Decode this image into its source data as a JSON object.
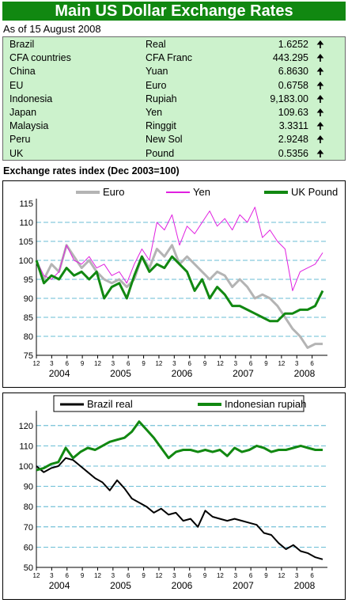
{
  "title": "Main US Dollar Exchange Rates",
  "as_of": "As of 15 August 2008",
  "rates": [
    {
      "country": "Brazil",
      "currency": "Real",
      "value": "1.6252",
      "arrow": "🠉"
    },
    {
      "country": "CFA countries",
      "currency": "CFA Franc",
      "value": "443.295",
      "arrow": "🠉"
    },
    {
      "country": "China",
      "currency": "Yuan",
      "value": "6.8630",
      "arrow": "🠉"
    },
    {
      "country": "EU",
      "currency": "Euro",
      "value": "0.6758",
      "arrow": "🠉"
    },
    {
      "country": "Indonesia",
      "currency": "Rupiah",
      "value": "9,183.00",
      "arrow": "🠉"
    },
    {
      "country": "Japan",
      "currency": "Yen",
      "value": "109.63",
      "arrow": "🠉"
    },
    {
      "country": "Malaysia",
      "currency": "Ringgit",
      "value": "3.3311",
      "arrow": "🠉"
    },
    {
      "country": "Peru",
      "currency": "New Sol",
      "value": "2.9248",
      "arrow": "🠉"
    },
    {
      "country": "UK",
      "currency": "Pound",
      "value": "0.5356",
      "arrow": "🠉"
    }
  ],
  "section_label": "Exchange rates index (Dec 2003=100)",
  "chart_data": [
    {
      "type": "line",
      "ylim": [
        75,
        115
      ],
      "yticks": [
        75,
        80,
        85,
        90,
        95,
        100,
        105,
        110,
        115
      ],
      "month_ticks": [
        "12",
        "3",
        "6",
        "9",
        "12",
        "3",
        "6",
        "9",
        "12",
        "3",
        "6",
        "9",
        "12",
        "3",
        "6",
        "9",
        "12",
        "3",
        "6"
      ],
      "year_labels": [
        "2004",
        "2005",
        "2006",
        "2007",
        "2008"
      ],
      "grid": "dashed-horizontal",
      "legend": "top",
      "series": [
        {
          "name": "Euro",
          "color": "#b4b4b4",
          "values": [
            100,
            95,
            99,
            97,
            104,
            101,
            98,
            100,
            97,
            95,
            94,
            95,
            93,
            95,
            101,
            98,
            103,
            101,
            104,
            99,
            101,
            99,
            97,
            95,
            97,
            96,
            93,
            95,
            93,
            90,
            91,
            90,
            88,
            85,
            82,
            80,
            77,
            78,
            78
          ]
        },
        {
          "name": "Yen",
          "color": "#e020e0",
          "values": [
            100,
            96,
            95,
            97,
            104,
            100,
            99,
            101,
            98,
            99,
            96,
            97,
            94,
            99,
            103,
            100,
            110,
            108,
            112,
            104,
            109,
            107,
            110,
            113,
            109,
            111,
            108,
            112,
            110,
            114,
            106,
            108,
            105,
            103,
            92,
            97,
            98,
            99,
            102
          ]
        },
        {
          "name": "UK Pound",
          "color": "#118811",
          "values": [
            100,
            94,
            96,
            95,
            98,
            96,
            97,
            95,
            97,
            90,
            93,
            94,
            90,
            96,
            101,
            97,
            99,
            98,
            101,
            99,
            97,
            92,
            95,
            90,
            93,
            91,
            88,
            88,
            87,
            86,
            85,
            84,
            84,
            86,
            86,
            87,
            87,
            88,
            92
          ]
        }
      ]
    },
    {
      "type": "line",
      "ylim": [
        50,
        125
      ],
      "yticks": [
        50,
        60,
        70,
        80,
        90,
        100,
        110,
        120
      ],
      "month_ticks": [
        "12",
        "3",
        "6",
        "9",
        "12",
        "3",
        "6",
        "9",
        "12",
        "3",
        "6",
        "9",
        "12",
        "3",
        "6",
        "9",
        "12",
        "3",
        "6"
      ],
      "year_labels": [
        "2004",
        "2005",
        "2006",
        "2007",
        "2008"
      ],
      "grid": "dashed-horizontal",
      "legend": "top",
      "series": [
        {
          "name": "Brazil real",
          "color": "#000000",
          "values": [
            100,
            97,
            99,
            100,
            104,
            103,
            100,
            97,
            94,
            92,
            88,
            93,
            89,
            84,
            82,
            80,
            77,
            79,
            76,
            77,
            73,
            74,
            70,
            78,
            75,
            74,
            73,
            74,
            73,
            72,
            71,
            67,
            66,
            62,
            59,
            61,
            58,
            57,
            55,
            54
          ]
        },
        {
          "name": "Indonesian rupiah",
          "color": "#118811",
          "values": [
            98,
            99,
            101,
            102,
            109,
            104,
            107,
            109,
            108,
            110,
            112,
            113,
            114,
            117,
            122,
            118,
            114,
            109,
            104,
            107,
            108,
            108,
            107,
            108,
            107,
            108,
            105,
            109,
            107,
            108,
            110,
            109,
            107,
            108,
            108,
            109,
            110,
            109,
            108,
            108
          ]
        }
      ]
    }
  ]
}
